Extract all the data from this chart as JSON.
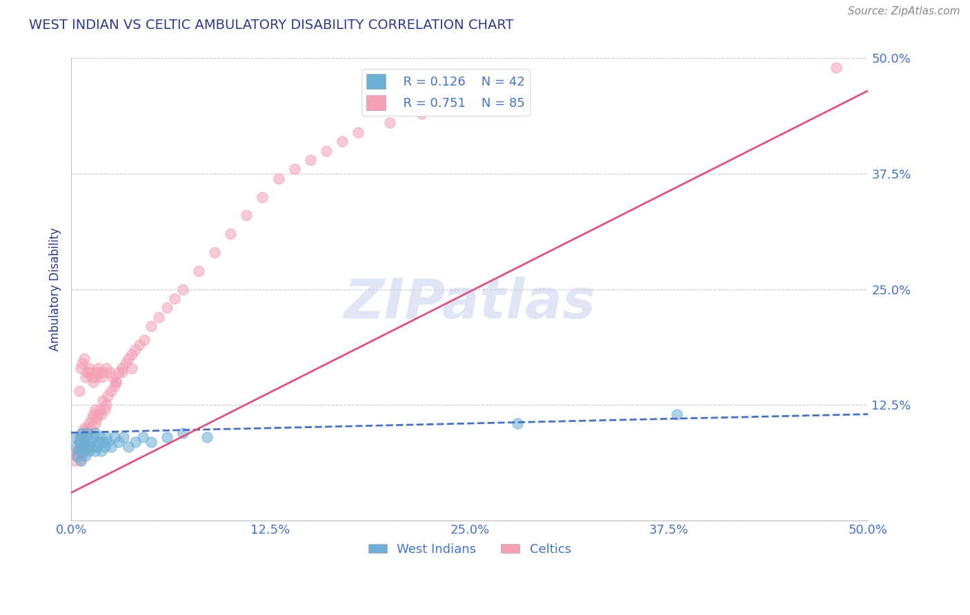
{
  "title": "WEST INDIAN VS CELTIC AMBULATORY DISABILITY CORRELATION CHART",
  "source": "Source: ZipAtlas.com",
  "ylabel": "Ambulatory Disability",
  "tick_labels": [
    "0.0%",
    "12.5%",
    "25.0%",
    "37.5%",
    "50.0%"
  ],
  "xlim": [
    0.0,
    0.5
  ],
  "ylim": [
    0.0,
    0.5
  ],
  "legend_r_blue": "R = 0.126",
  "legend_n_blue": "N = 42",
  "legend_r_pink": "R = 0.751",
  "legend_n_pink": "N = 85",
  "blue_scatter_color": "#6baed6",
  "pink_scatter_color": "#f4a0b5",
  "blue_line_color": "#4472c4",
  "pink_line_color": "#e05080",
  "title_color": "#2e3a8c",
  "axis_label_color": "#2e3a8c",
  "tick_color": "#4472c4",
  "watermark_color": "#ccd6f0",
  "background_color": "#ffffff",
  "grid_color": "#cccccc",
  "west_indian_x": [
    0.002,
    0.003,
    0.004,
    0.005,
    0.005,
    0.006,
    0.006,
    0.007,
    0.007,
    0.008,
    0.008,
    0.009,
    0.009,
    0.01,
    0.01,
    0.011,
    0.012,
    0.013,
    0.014,
    0.015,
    0.015,
    0.016,
    0.017,
    0.018,
    0.019,
    0.02,
    0.021,
    0.022,
    0.023,
    0.025,
    0.027,
    0.03,
    0.033,
    0.036,
    0.04,
    0.045,
    0.05,
    0.06,
    0.07,
    0.085,
    0.28,
    0.38
  ],
  "west_indian_y": [
    0.09,
    0.08,
    0.07,
    0.075,
    0.085,
    0.065,
    0.09,
    0.08,
    0.095,
    0.075,
    0.085,
    0.07,
    0.09,
    0.08,
    0.095,
    0.075,
    0.085,
    0.08,
    0.09,
    0.075,
    0.095,
    0.08,
    0.085,
    0.09,
    0.075,
    0.085,
    0.08,
    0.09,
    0.085,
    0.08,
    0.09,
    0.085,
    0.09,
    0.08,
    0.085,
    0.09,
    0.085,
    0.09,
    0.095,
    0.09,
    0.105,
    0.115
  ],
  "celtic_x": [
    0.002,
    0.003,
    0.004,
    0.005,
    0.005,
    0.006,
    0.006,
    0.007,
    0.007,
    0.008,
    0.008,
    0.009,
    0.009,
    0.01,
    0.01,
    0.011,
    0.011,
    0.012,
    0.013,
    0.014,
    0.015,
    0.015,
    0.016,
    0.017,
    0.018,
    0.019,
    0.02,
    0.021,
    0.022,
    0.023,
    0.025,
    0.027,
    0.028,
    0.03,
    0.032,
    0.034,
    0.036,
    0.038,
    0.04,
    0.043,
    0.046,
    0.05,
    0.055,
    0.06,
    0.065,
    0.07,
    0.08,
    0.09,
    0.1,
    0.11,
    0.12,
    0.13,
    0.14,
    0.15,
    0.16,
    0.17,
    0.18,
    0.2,
    0.22,
    0.25,
    0.003,
    0.004,
    0.005,
    0.006,
    0.007,
    0.008,
    0.009,
    0.01,
    0.011,
    0.012,
    0.013,
    0.014,
    0.015,
    0.016,
    0.017,
    0.018,
    0.019,
    0.02,
    0.022,
    0.024,
    0.026,
    0.028,
    0.032,
    0.038,
    0.48
  ],
  "celtic_y": [
    0.065,
    0.07,
    0.075,
    0.08,
    0.09,
    0.065,
    0.085,
    0.07,
    0.095,
    0.075,
    0.1,
    0.08,
    0.085,
    0.09,
    0.1,
    0.095,
    0.105,
    0.1,
    0.11,
    0.115,
    0.105,
    0.12,
    0.11,
    0.115,
    0.12,
    0.115,
    0.13,
    0.12,
    0.125,
    0.135,
    0.14,
    0.145,
    0.15,
    0.16,
    0.165,
    0.17,
    0.175,
    0.18,
    0.185,
    0.19,
    0.195,
    0.21,
    0.22,
    0.23,
    0.24,
    0.25,
    0.27,
    0.29,
    0.31,
    0.33,
    0.35,
    0.37,
    0.38,
    0.39,
    0.4,
    0.41,
    0.42,
    0.43,
    0.44,
    0.45,
    0.07,
    0.075,
    0.14,
    0.165,
    0.17,
    0.175,
    0.155,
    0.16,
    0.165,
    0.16,
    0.155,
    0.15,
    0.155,
    0.16,
    0.165,
    0.16,
    0.155,
    0.16,
    0.165,
    0.16,
    0.155,
    0.15,
    0.16,
    0.165,
    0.49
  ],
  "blue_trend_x": [
    0.0,
    0.5
  ],
  "blue_trend_y": [
    0.095,
    0.115
  ],
  "pink_trend_x": [
    0.0,
    0.5
  ],
  "pink_trend_y": [
    0.03,
    0.465
  ]
}
